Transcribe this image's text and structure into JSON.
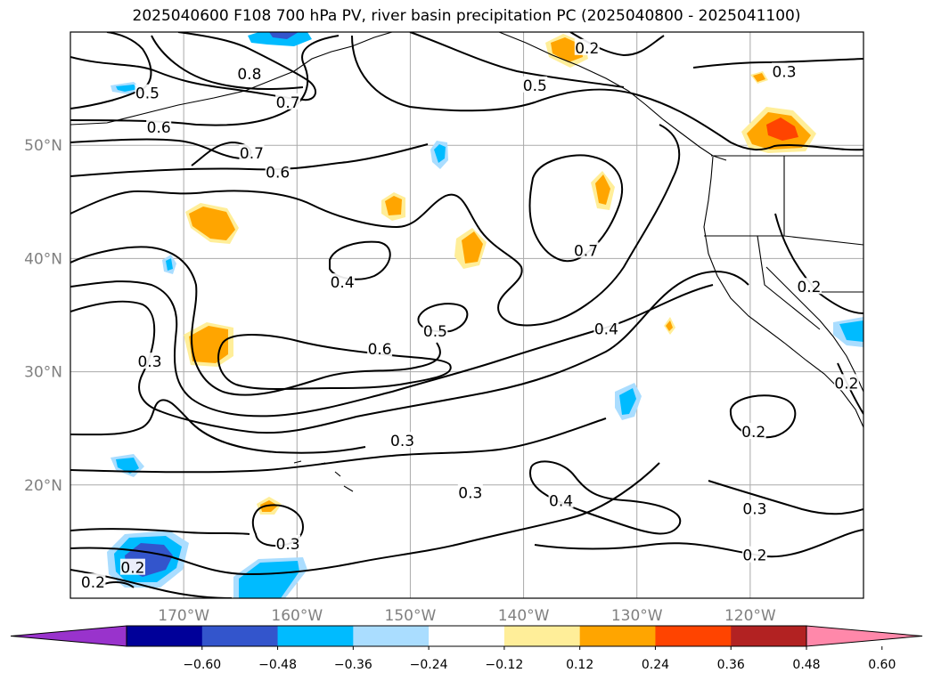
{
  "title": "2025040600 F108 700 hPa PV, river basin precipitation PC (2025040800 - 2025041100)",
  "map": {
    "lon_range": [
      -180,
      -110
    ],
    "lat_range": [
      10,
      60
    ],
    "lon_ticks": [
      {
        "value": -170,
        "label": "170°W"
      },
      {
        "value": -160,
        "label": "160°W"
      },
      {
        "value": -150,
        "label": "150°W"
      },
      {
        "value": -140,
        "label": "140°W"
      },
      {
        "value": -130,
        "label": "130°W"
      },
      {
        "value": -120,
        "label": "120°W"
      }
    ],
    "lat_ticks": [
      {
        "value": 20,
        "label": "20°N"
      },
      {
        "value": 30,
        "label": "30°N"
      },
      {
        "value": 40,
        "label": "40°N"
      },
      {
        "value": 50,
        "label": "50°N"
      }
    ],
    "grid": true,
    "contour_color": "#000000",
    "contour_labels": [
      {
        "text": "0.8",
        "lon": -164.2,
        "lat": 56.3
      },
      {
        "text": "0.7",
        "lon": -160.8,
        "lat": 53.8
      },
      {
        "text": "0.6",
        "lon": -172.2,
        "lat": 51.6
      },
      {
        "text": "0.7",
        "lon": -164.0,
        "lat": 49.3
      },
      {
        "text": "0.6",
        "lon": -161.7,
        "lat": 47.6
      },
      {
        "text": "0.5",
        "lon": -173.2,
        "lat": 54.6
      },
      {
        "text": "0.5",
        "lon": -139.0,
        "lat": 55.3
      },
      {
        "text": "0.3",
        "lon": -117.0,
        "lat": 56.5
      },
      {
        "text": "0.2",
        "lon": -134.4,
        "lat": 58.6
      },
      {
        "text": "0.4",
        "lon": -156.0,
        "lat": 37.9
      },
      {
        "text": "0.5",
        "lon": -147.8,
        "lat": 33.6
      },
      {
        "text": "0.6",
        "lon": -152.7,
        "lat": 32.0
      },
      {
        "text": "0.7",
        "lon": -134.5,
        "lat": 40.7
      },
      {
        "text": "0.4",
        "lon": -132.7,
        "lat": 33.8
      },
      {
        "text": "0.3",
        "lon": -173.0,
        "lat": 30.9
      },
      {
        "text": "0.3",
        "lon": -150.7,
        "lat": 23.9
      },
      {
        "text": "0.3",
        "lon": -144.7,
        "lat": 19.3
      },
      {
        "text": "0.4",
        "lon": -136.7,
        "lat": 18.6
      },
      {
        "text": "0.3",
        "lon": -160.8,
        "lat": 14.8
      },
      {
        "text": "0.2",
        "lon": -119.7,
        "lat": 24.7
      },
      {
        "text": "0.3",
        "lon": -119.6,
        "lat": 17.9
      },
      {
        "text": "0.2",
        "lon": -119.6,
        "lat": 13.8
      },
      {
        "text": "0.2",
        "lon": -174.5,
        "lat": 12.7
      },
      {
        "text": "0.2",
        "lon": -178.0,
        "lat": 11.4
      },
      {
        "text": "0.2",
        "lon": -114.8,
        "lat": 37.5
      },
      {
        "text": "0.2",
        "lon": -111.5,
        "lat": 29.0
      }
    ]
  },
  "colorbar": {
    "ticks": [
      "−0.60",
      "−0.48",
      "−0.36",
      "−0.24",
      "−0.12",
      "0.12",
      "0.24",
      "0.36",
      "0.48",
      "0.60"
    ],
    "colors": [
      "#9933cc",
      "#000099",
      "#3355cc",
      "#00bbff",
      "#aaddff",
      "#ffffff",
      "#ffee99",
      "#ffa500",
      "#ff4400",
      "#b22222",
      "#ff88aa"
    ]
  }
}
